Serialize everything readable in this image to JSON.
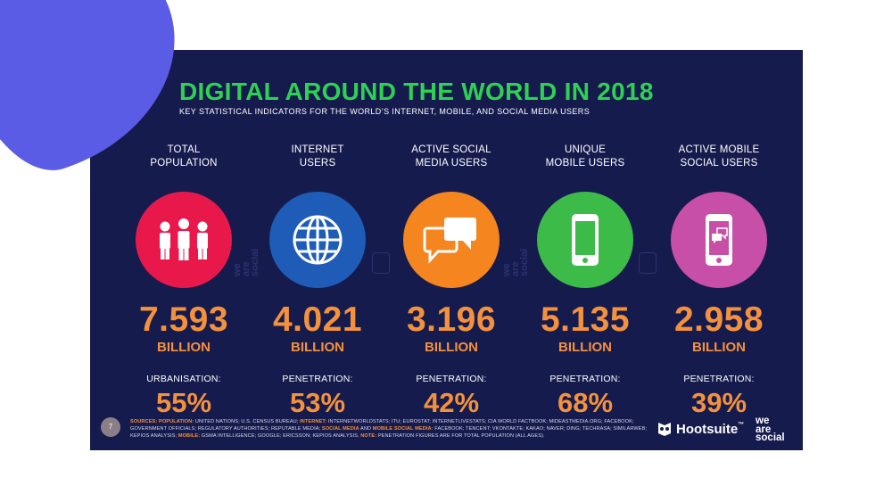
{
  "title": "DIGITAL AROUND THE WORLD IN 2018",
  "subtitle": "KEY STATISTICAL INDICATORS FOR THE WORLD’S INTERNET, MOBILE, AND SOCIAL MEDIA USERS",
  "columns": [
    {
      "label_1": "TOTAL",
      "label_2": "POPULATION",
      "value": "7.593",
      "unit": "BILLION",
      "sub_label": "URBANISATION:",
      "percent": "55%",
      "color": "#e8194a",
      "icon": "population-icon"
    },
    {
      "label_1": "INTERNET",
      "label_2": "USERS",
      "value": "4.021",
      "unit": "BILLION",
      "sub_label": "PENETRATION:",
      "percent": "53%",
      "color": "#1e5cb8",
      "icon": "globe-icon"
    },
    {
      "label_1": "ACTIVE SOCIAL",
      "label_2": "MEDIA USERS",
      "value": "3.196",
      "unit": "BILLION",
      "sub_label": "PENETRATION:",
      "percent": "42%",
      "color": "#f4851f",
      "icon": "chat-bubbles-icon"
    },
    {
      "label_1": "UNIQUE",
      "label_2": "MOBILE USERS",
      "value": "5.135",
      "unit": "BILLION",
      "sub_label": "PENETRATION:",
      "percent": "68%",
      "color": "#3dbb49",
      "icon": "mobile-phone-icon"
    },
    {
      "label_1": "ACTIVE MOBILE",
      "label_2": "SOCIAL USERS",
      "value": "2.958",
      "unit": "BILLION",
      "sub_label": "PENETRATION:",
      "percent": "39%",
      "color": "#c74fa7",
      "icon": "mobile-social-icon"
    }
  ],
  "watermark": {
    "line1": "we",
    "line2": "are",
    "line3": "social"
  },
  "footer": {
    "page_number": "7",
    "sources_label": "SOURCES:",
    "population_label": "POPULATION:",
    "population_text": "UNITED NATIONS; U.S. CENSUS BUREAU;",
    "internet_label": "INTERNET:",
    "internet_text": "INTERNETWORLDSTATS; ITU; EUROSTAT; INTERNETLIVESTATS; CIA WORLD FACTBOOK; MIDEASTMEDIA.ORG; FACEBOOK; GOVERNMENT OFFICIALS; REGULATORY AUTHORITIES; REPUTABLE MEDIA;",
    "social_label": "SOCIAL MEDIA",
    "and_text": "AND",
    "mobile_social_label": "MOBILE SOCIAL MEDIA:",
    "social_text": "FACEBOOK; TENCENT; VKONTAKTE; KAKAO; NAVER; DING; TECHRASA; SIMILARWEB; KEPIOS ANALYSIS;",
    "mobile_label": "MOBILE:",
    "mobile_text": "GSMA INTELLIGENCE; GOOGLE; ERICSSON; KEPIOS ANALYSIS.",
    "note_label": "NOTE:",
    "note_text": "PENETRATION FIGURES ARE FOR TOTAL POPULATION (ALL AGES).",
    "hootsuite": "Hootsuite",
    "hootsuite_tm": "™",
    "was_line1": "we",
    "was_line2": "are",
    "was_line3": "social"
  },
  "colors": {
    "title": "#2fd152",
    "accent": "#f4913c",
    "background": "#161b4e"
  }
}
